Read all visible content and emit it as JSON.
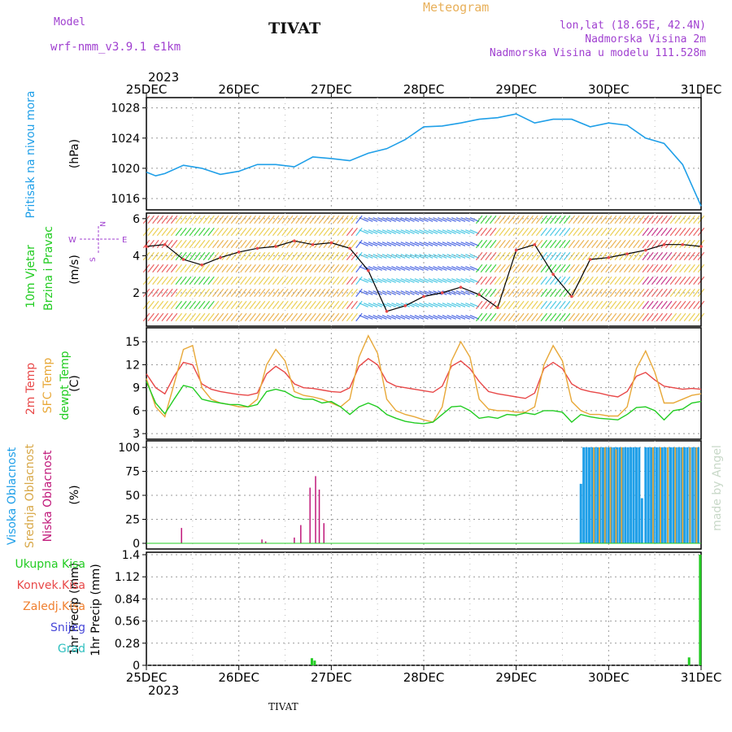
{
  "header": {
    "model_label": "Model",
    "model_name": "wrf-nmm_v3.9.1 e1km",
    "product": "Meteogram",
    "station": "TIVAT",
    "lonlat": "lon,lat (18.65E, 42.4N)",
    "elevation": "Nadmorska Visina 2m",
    "model_elevation": "Nadmorska Visina u modelu 111.528m"
  },
  "footer": {
    "station": "TIVAT",
    "credit": "made by Angel"
  },
  "colors": {
    "pressure": "#1f9fe8",
    "wind_label": "#22cc22",
    "temp2m": "#e84848",
    "sfc": "#e8a838",
    "dewpt": "#22cc22",
    "visoka": "#1f9fe8",
    "srednja": "#d8a848",
    "niska": "#c0187a",
    "ukupna": "#22cc22",
    "konvek": "#e84848",
    "zaledj": "#f08030",
    "snijeg": "#4848d8",
    "grad": "#30c0c0",
    "compass": "#a040d0"
  },
  "chart_data": [
    {
      "id": "pressure",
      "type": "line",
      "ylabel": "(hPa)",
      "side_label": "Pritisak na nivou mora",
      "ylim": [
        1014.5,
        1028.5
      ],
      "yticks": [
        1016,
        1020,
        1024,
        1028
      ],
      "x": [
        0,
        0.1,
        0.2,
        0.4,
        0.6,
        0.8,
        1.0,
        1.2,
        1.4,
        1.6,
        1.8,
        2.0,
        2.2,
        2.4,
        2.6,
        2.8,
        3.0,
        3.2,
        3.4,
        3.6,
        3.8,
        4.0,
        4.2,
        4.4,
        4.6,
        4.8,
        5.0,
        5.2,
        5.4,
        5.6,
        5.8,
        6.0
      ],
      "series": [
        {
          "values": [
            1019.5,
            1019.0,
            1019.3,
            1020.4,
            1020.0,
            1019.2,
            1019.6,
            1020.5,
            1020.5,
            1020.2,
            1021.5,
            1021.3,
            1021.0,
            1022.0,
            1022.6,
            1023.8,
            1025.5,
            1025.6,
            1026.0,
            1026.5,
            1026.7,
            1027.2,
            1026.0,
            1026.5,
            1026.5,
            1025.5,
            1026.0,
            1025.7,
            1024.0,
            1023.3,
            1020.5,
            1015.0
          ]
        }
      ]
    },
    {
      "id": "wind",
      "type": "line",
      "ylabel": "(m/s)",
      "side_label": [
        "10m Vjetar",
        "Brzina i Pravac"
      ],
      "compass": {
        "n": "N",
        "w": "W",
        "e": "E",
        "s": "S"
      },
      "ylim": [
        0.2,
        6.3
      ],
      "yticks": [
        2,
        4,
        6
      ],
      "x": [
        0,
        0.2,
        0.4,
        0.6,
        0.8,
        1.0,
        1.2,
        1.4,
        1.6,
        1.8,
        2.0,
        2.2,
        2.4,
        2.6,
        2.8,
        3.0,
        3.2,
        3.4,
        3.6,
        3.8,
        4.0,
        4.2,
        4.4,
        4.6,
        4.8,
        5.0,
        5.2,
        5.4,
        5.6,
        5.8,
        6.0
      ],
      "series": [
        {
          "values": [
            4.5,
            4.6,
            3.8,
            3.5,
            3.9,
            4.2,
            4.4,
            4.5,
            4.8,
            4.6,
            4.7,
            4.4,
            3.2,
            1.0,
            1.3,
            1.8,
            2.0,
            2.3,
            1.9,
            1.2,
            4.3,
            4.6,
            3.0,
            1.8,
            3.8,
            3.9,
            4.1,
            4.3,
            4.6,
            4.6,
            4.5
          ]
        }
      ]
    },
    {
      "id": "temperature",
      "type": "line",
      "ylabel": "(C)",
      "side_label": [
        "2m Temp",
        "SFC Temp",
        "dewpt Temp"
      ],
      "ylim": [
        2.8,
        16.3
      ],
      "yticks": [
        3,
        6,
        9,
        12,
        15
      ],
      "x": [
        0,
        0.1,
        0.2,
        0.3,
        0.4,
        0.5,
        0.6,
        0.7,
        0.8,
        0.9,
        1.0,
        1.1,
        1.2,
        1.3,
        1.4,
        1.5,
        1.6,
        1.7,
        1.8,
        1.9,
        2.0,
        2.1,
        2.2,
        2.3,
        2.4,
        2.5,
        2.6,
        2.7,
        2.8,
        2.9,
        3.0,
        3.1,
        3.2,
        3.3,
        3.4,
        3.5,
        3.6,
        3.7,
        3.8,
        3.9,
        4.0,
        4.1,
        4.2,
        4.3,
        4.4,
        4.5,
        4.6,
        4.7,
        4.8,
        4.9,
        5.0,
        5.1,
        5.2,
        5.3,
        5.4,
        5.5,
        5.6,
        5.7,
        5.8,
        5.9,
        6.0
      ],
      "series": [
        {
          "name": "2m Temp",
          "values": [
            10.8,
            9.0,
            8.2,
            10.5,
            12.3,
            12.0,
            9.5,
            8.8,
            8.5,
            8.3,
            8.1,
            8.0,
            8.3,
            10.8,
            11.8,
            11.0,
            9.5,
            9.0,
            8.9,
            8.7,
            8.5,
            8.4,
            9.0,
            11.8,
            12.8,
            12.0,
            9.8,
            9.2,
            9.0,
            8.8,
            8.6,
            8.4,
            9.2,
            11.8,
            12.5,
            11.5,
            9.8,
            8.5,
            8.2,
            8.0,
            7.8,
            7.6,
            8.3,
            11.5,
            12.3,
            11.5,
            9.5,
            8.8,
            8.5,
            8.3,
            8.0,
            7.8,
            8.5,
            10.5,
            11.0,
            10.0,
            9.2,
            9.0,
            8.8,
            8.9,
            8.8
          ]
        },
        {
          "name": "SFC Temp",
          "values": [
            10.2,
            6.5,
            5.2,
            9.5,
            14.0,
            14.5,
            9.0,
            7.5,
            7.0,
            6.8,
            6.5,
            6.5,
            7.5,
            12.0,
            14.0,
            12.5,
            8.5,
            8.0,
            7.8,
            7.5,
            7.0,
            6.5,
            7.5,
            13.0,
            15.8,
            13.5,
            7.5,
            6.0,
            5.5,
            5.2,
            4.8,
            4.5,
            6.5,
            12.5,
            15.0,
            13.0,
            7.5,
            6.2,
            6.0,
            6.0,
            5.8,
            5.8,
            6.5,
            12.0,
            14.5,
            12.5,
            7.2,
            6.0,
            5.5,
            5.5,
            5.3,
            5.3,
            6.5,
            11.5,
            13.8,
            11.0,
            7.0,
            7.0,
            7.5,
            8.0,
            8.2
          ]
        },
        {
          "name": "dewpt Temp",
          "values": [
            9.8,
            7.0,
            5.6,
            7.5,
            9.3,
            9.0,
            7.5,
            7.2,
            7.0,
            6.8,
            6.8,
            6.5,
            6.8,
            8.5,
            8.8,
            8.5,
            7.8,
            7.5,
            7.5,
            7.0,
            7.2,
            6.5,
            5.5,
            6.5,
            7.0,
            6.5,
            5.5,
            5.0,
            4.6,
            4.4,
            4.3,
            4.5,
            5.5,
            6.5,
            6.6,
            6.0,
            5.0,
            5.2,
            5.0,
            5.5,
            5.4,
            5.7,
            5.5,
            6.0,
            6.0,
            5.8,
            4.5,
            5.5,
            5.2,
            5.0,
            4.9,
            4.8,
            5.5,
            6.4,
            6.5,
            6.0,
            4.8,
            6.0,
            6.2,
            7.0,
            7.2
          ]
        }
      ]
    },
    {
      "id": "cloud",
      "type": "bar",
      "ylabel": "(%)",
      "side_label": [
        "Visoka Oblacnost",
        "Srednja Oblacnost",
        "Niska Oblacnost"
      ],
      "ylim": [
        0,
        100
      ],
      "yticks": [
        0,
        25,
        50,
        75,
        100
      ],
      "series": [
        {
          "name": "Niska Oblacnost",
          "x": [
            0.38,
            1.25,
            1.29,
            1.6,
            1.67,
            1.77,
            1.83,
            1.87,
            1.92
          ],
          "values": [
            16,
            4,
            2,
            6,
            19,
            58,
            70,
            56,
            21
          ]
        },
        {
          "name": "Visoka Oblacnost",
          "x": [
            4.7,
            4.73,
            4.76,
            4.79,
            4.82,
            4.85,
            4.88,
            4.91,
            4.94,
            4.97,
            5.0,
            5.03,
            5.06,
            5.09,
            5.12,
            5.15,
            5.18,
            5.21,
            5.24,
            5.27,
            5.3,
            5.33,
            5.36,
            5.4,
            5.43,
            5.46,
            5.49,
            5.52,
            5.55,
            5.58,
            5.61,
            5.64,
            5.67,
            5.7,
            5.73,
            5.76,
            5.79,
            5.82,
            5.85,
            5.88,
            5.91,
            5.94,
            5.97
          ],
          "values": [
            62,
            100,
            100,
            100,
            100,
            100,
            100,
            100,
            100,
            100,
            100,
            100,
            100,
            100,
            100,
            100,
            100,
            100,
            100,
            100,
            100,
            100,
            47,
            100,
            100,
            100,
            100,
            100,
            100,
            100,
            100,
            100,
            100,
            100,
            100,
            100,
            100,
            100,
            100,
            100,
            100,
            100,
            100
          ]
        },
        {
          "name": "Srednja Oblacnost",
          "x": [
            4.84,
            4.9,
            4.96,
            5.02,
            5.08,
            5.14,
            5.48,
            5.56,
            5.64,
            5.72,
            5.8,
            5.88,
            5.95
          ],
          "values": [
            100,
            100,
            100,
            100,
            98,
            100,
            100,
            100,
            100,
            100,
            100,
            100,
            100
          ]
        }
      ]
    },
    {
      "id": "precip",
      "type": "bar",
      "ylabel": "1hr Precip (mm)",
      "side_label": [
        "Ukupna Kisa",
        "Konvek.Kisa",
        "Zaledj.Kisa",
        "Snijeg",
        "Grad"
      ],
      "ylim": [
        0,
        1.4
      ],
      "yticks": [
        0,
        0.28,
        0.56,
        0.84,
        1.12,
        1.4
      ],
      "series": [
        {
          "name": "Ukupna Kisa",
          "x": [
            1.79,
            1.82,
            5.87,
            5.99
          ],
          "values": [
            0.09,
            0.06,
            0.1,
            1.4
          ]
        }
      ]
    }
  ],
  "time_axis": {
    "year": "2023",
    "labels": [
      "25DEC",
      "26DEC",
      "27DEC",
      "28DEC",
      "29DEC",
      "30DEC",
      "31DEC"
    ]
  }
}
